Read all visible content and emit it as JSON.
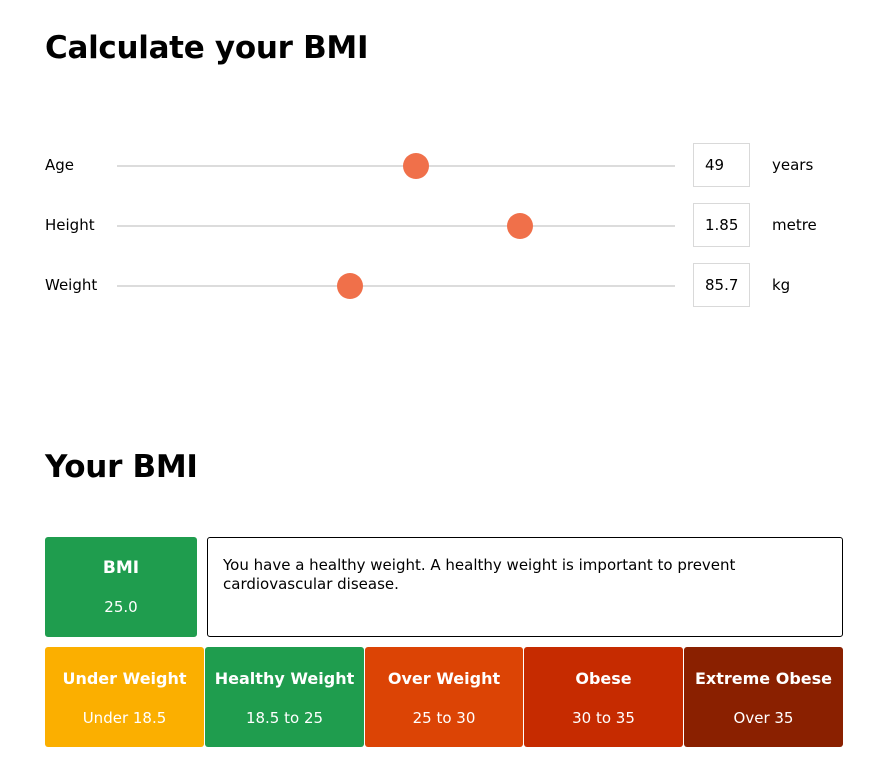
{
  "page": {
    "title": "Calculate your BMI",
    "result_title": "Your BMI"
  },
  "inputs": {
    "age": {
      "label": "Age",
      "value": "49",
      "unit": "years",
      "slider_fraction": 0.536
    },
    "height": {
      "label": "Height",
      "value": "1.85",
      "unit": "metre",
      "slider_fraction": 0.723
    },
    "weight": {
      "label": "Weight",
      "value": "85.7",
      "unit": "kg",
      "slider_fraction": 0.418
    }
  },
  "result": {
    "card_title": "BMI",
    "value": "25.0",
    "card_color": "#1f9d4e",
    "message": "You have a healthy weight. A healthy weight is important to prevent cardiovascular disease."
  },
  "categories": [
    {
      "name": "Under Weight",
      "range": "Under 18.5",
      "color": "#fbaf00"
    },
    {
      "name": "Healthy Weight",
      "range": "18.5 to 25",
      "color": "#1f9d4e"
    },
    {
      "name": "Over Weight",
      "range": "25 to 30",
      "color": "#dc4405"
    },
    {
      "name": "Obese",
      "range": "30 to 35",
      "color": "#c62b00"
    },
    {
      "name": "Extreme Obese",
      "range": "Over 35",
      "color": "#8a2000"
    }
  ],
  "colors": {
    "slider_thumb": "#f0704a",
    "slider_track": "#dcdcdc"
  }
}
